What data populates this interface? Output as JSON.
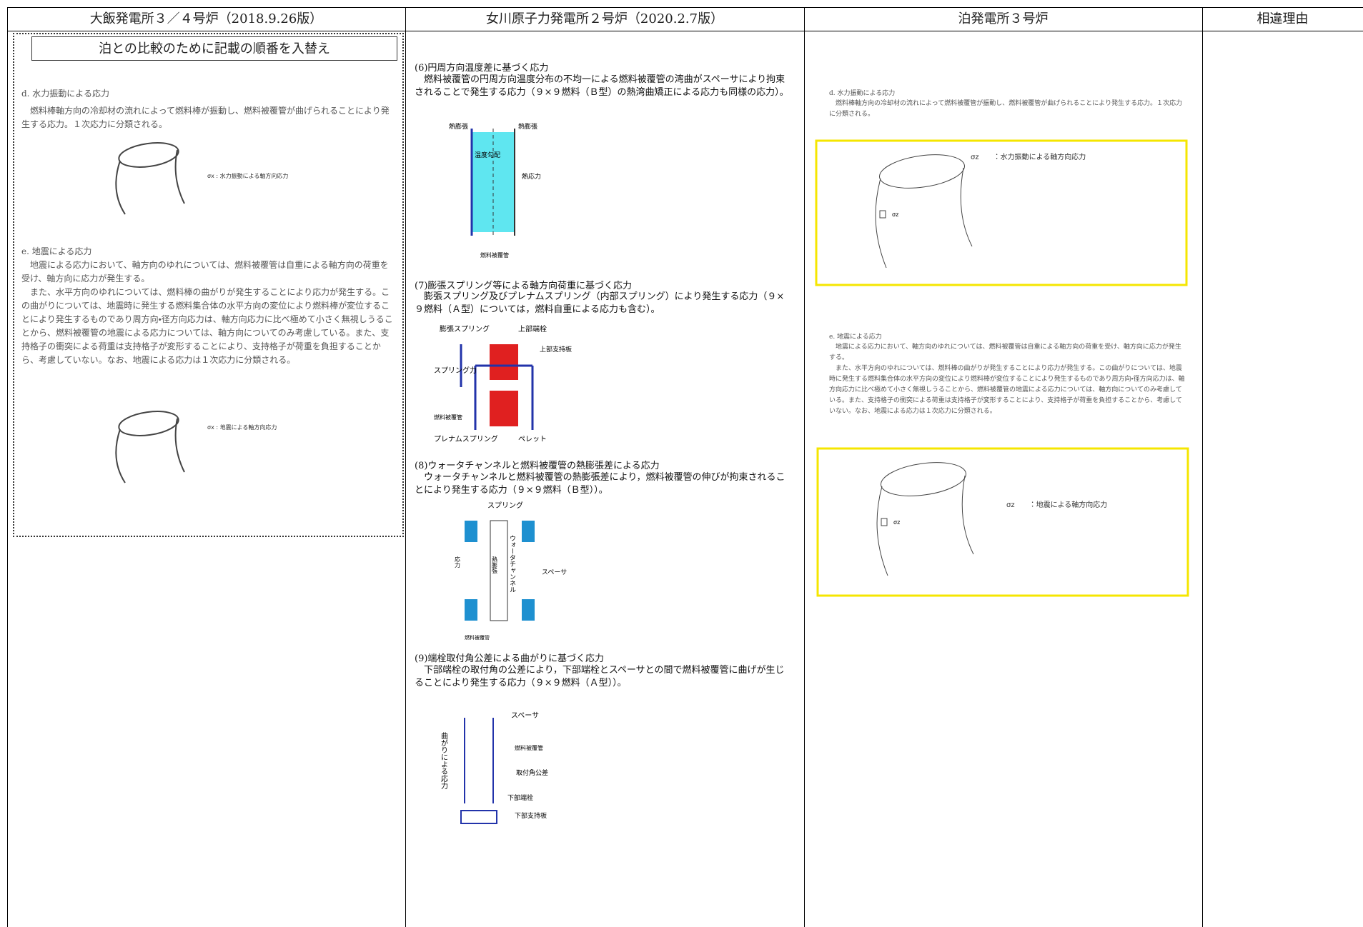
{
  "header": {
    "columns": [
      "大飯発電所３／４号炉（2018.9.26版）",
      "女川原子力発電所２号炉（2020.2.7版）",
      "泊発電所３号炉",
      "相違理由"
    ]
  },
  "col1": {
    "banner": "泊との比較のために記載の順番を入替え",
    "d": {
      "title": "d. 水力振動による応力",
      "text": "燃料棒軸方向の冷却材の流れによって燃料棒が振動し、燃料被覆管が曲げられることにより発生する応力。１次応力に分類される。",
      "figure_label": "σx : 水力振動による軸方向応力"
    },
    "e": {
      "title": "e. 地震による応力",
      "text1": "地震による応力において、軸方向のゆれについては、燃料被覆管は自重による軸方向の荷重を受け、軸方向に応力が発生する。",
      "text2": "また、水平方向のゆれについては、燃料棒の曲がりが発生することにより応力が発生する。この曲がりについては、地震時に発生する燃料集合体の水平方向の変位により燃料棒が変位することにより発生するものであり周方向・径方向応力は、軸方向応力に比べ極めて小さく無視しうることから、燃料被覆管の地震による応力については、軸方向についてのみ考慮している。また、支持格子の衝突による荷重は支持格子が変形することにより、支持格子が荷重を負担することから、考慮していない。なお、地震による応力は１次応力に分類される。",
      "figure_label": "σx : 地震による軸方向応力"
    }
  },
  "col2": {
    "s6": {
      "title": "(6)円周方向温度差に基づく応力",
      "text": "燃料被覆管の円周方向温度分布の不均一による燃料被覆管の湾曲がスペーサにより拘束されることで発生する応力（９×９燃料（Ｂ型）の熱湾曲矯正による応力も同様の応力）。",
      "labels": [
        "熱膨張",
        "熱膨張",
        "温度勾配",
        "熱応力",
        "燃料被覆管"
      ]
    },
    "s7": {
      "title": "(7)膨張スプリング等による軸方向荷重に基づく応力",
      "text": "膨張スプリング及びプレナムスプリング（内部スプリング）により発生する応力（９×９燃料（Ａ型）については，燃料自重による応力も含む）。",
      "labels": [
        "膨張スプリング",
        "上部端栓",
        "上部支持板",
        "スプリング力",
        "燃料被覆管",
        "プレナムスプリング",
        "ペレット"
      ]
    },
    "s8": {
      "title": "(8)ウォータチャンネルと燃料被覆管の熱膨張差による応力",
      "text": "ウォータチャンネルと燃料被覆管の熱膨張差により，燃料被覆管の伸びが拘束されることにより発生する応力（９×９燃料（Ｂ型））。",
      "labels": [
        "スプリング",
        "ウォータチャンネル",
        "熱膨張",
        "応力",
        "スペーサ",
        "燃料被覆管"
      ]
    },
    "s9": {
      "title": "(9)端栓取付角公差による曲がりに基づく応力",
      "text": "下部端栓の取付角の公差により，下部端栓とスペーサとの間で燃料被覆管に曲げが生じることにより発生する応力（９×９燃料（Ａ型））。",
      "labels": [
        "スペーサ",
        "燃料被覆管",
        "取付角公差",
        "下部端栓",
        "下部支持板",
        "曲がりによる応力"
      ]
    }
  },
  "col3": {
    "d": {
      "title": "d. 水力振動による応力",
      "text": "燃料棒軸方向の冷却材の流れによって燃料被覆管が振動し、燃料被覆管が曲げられることにより発生する応力。１次応力に分類される。",
      "figure_label": "σz　　：水力振動による軸方向応力",
      "symbol": "σz"
    },
    "e": {
      "title": "e. 地震による応力",
      "text1": "地震による応力において、軸方向のゆれについては、燃料被覆管は自重による軸方向の荷重を受け、軸方向に応力が発生する。",
      "text2": "また、水平方向のゆれについては、燃料棒の曲がりが発生することにより応力が発生する。この曲がりについては、地震時に発生する燃料集合体の水平方向の変位により燃料棒が変位することにより発生するものであり周方向・径方向応力は、軸方向応力に比べ極めて小さく無視しうることから、燃料被覆管の地震による応力については、軸方向についてのみ考慮している。また、支持格子の衝突による荷重は支持格子が変形することにより、支持格子が荷重を負担することから、考慮していない。なお、地震による応力は１次応力に分類される。",
      "figure_label": "σz　　：地震による軸方向応力",
      "symbol": "σz"
    }
  }
}
